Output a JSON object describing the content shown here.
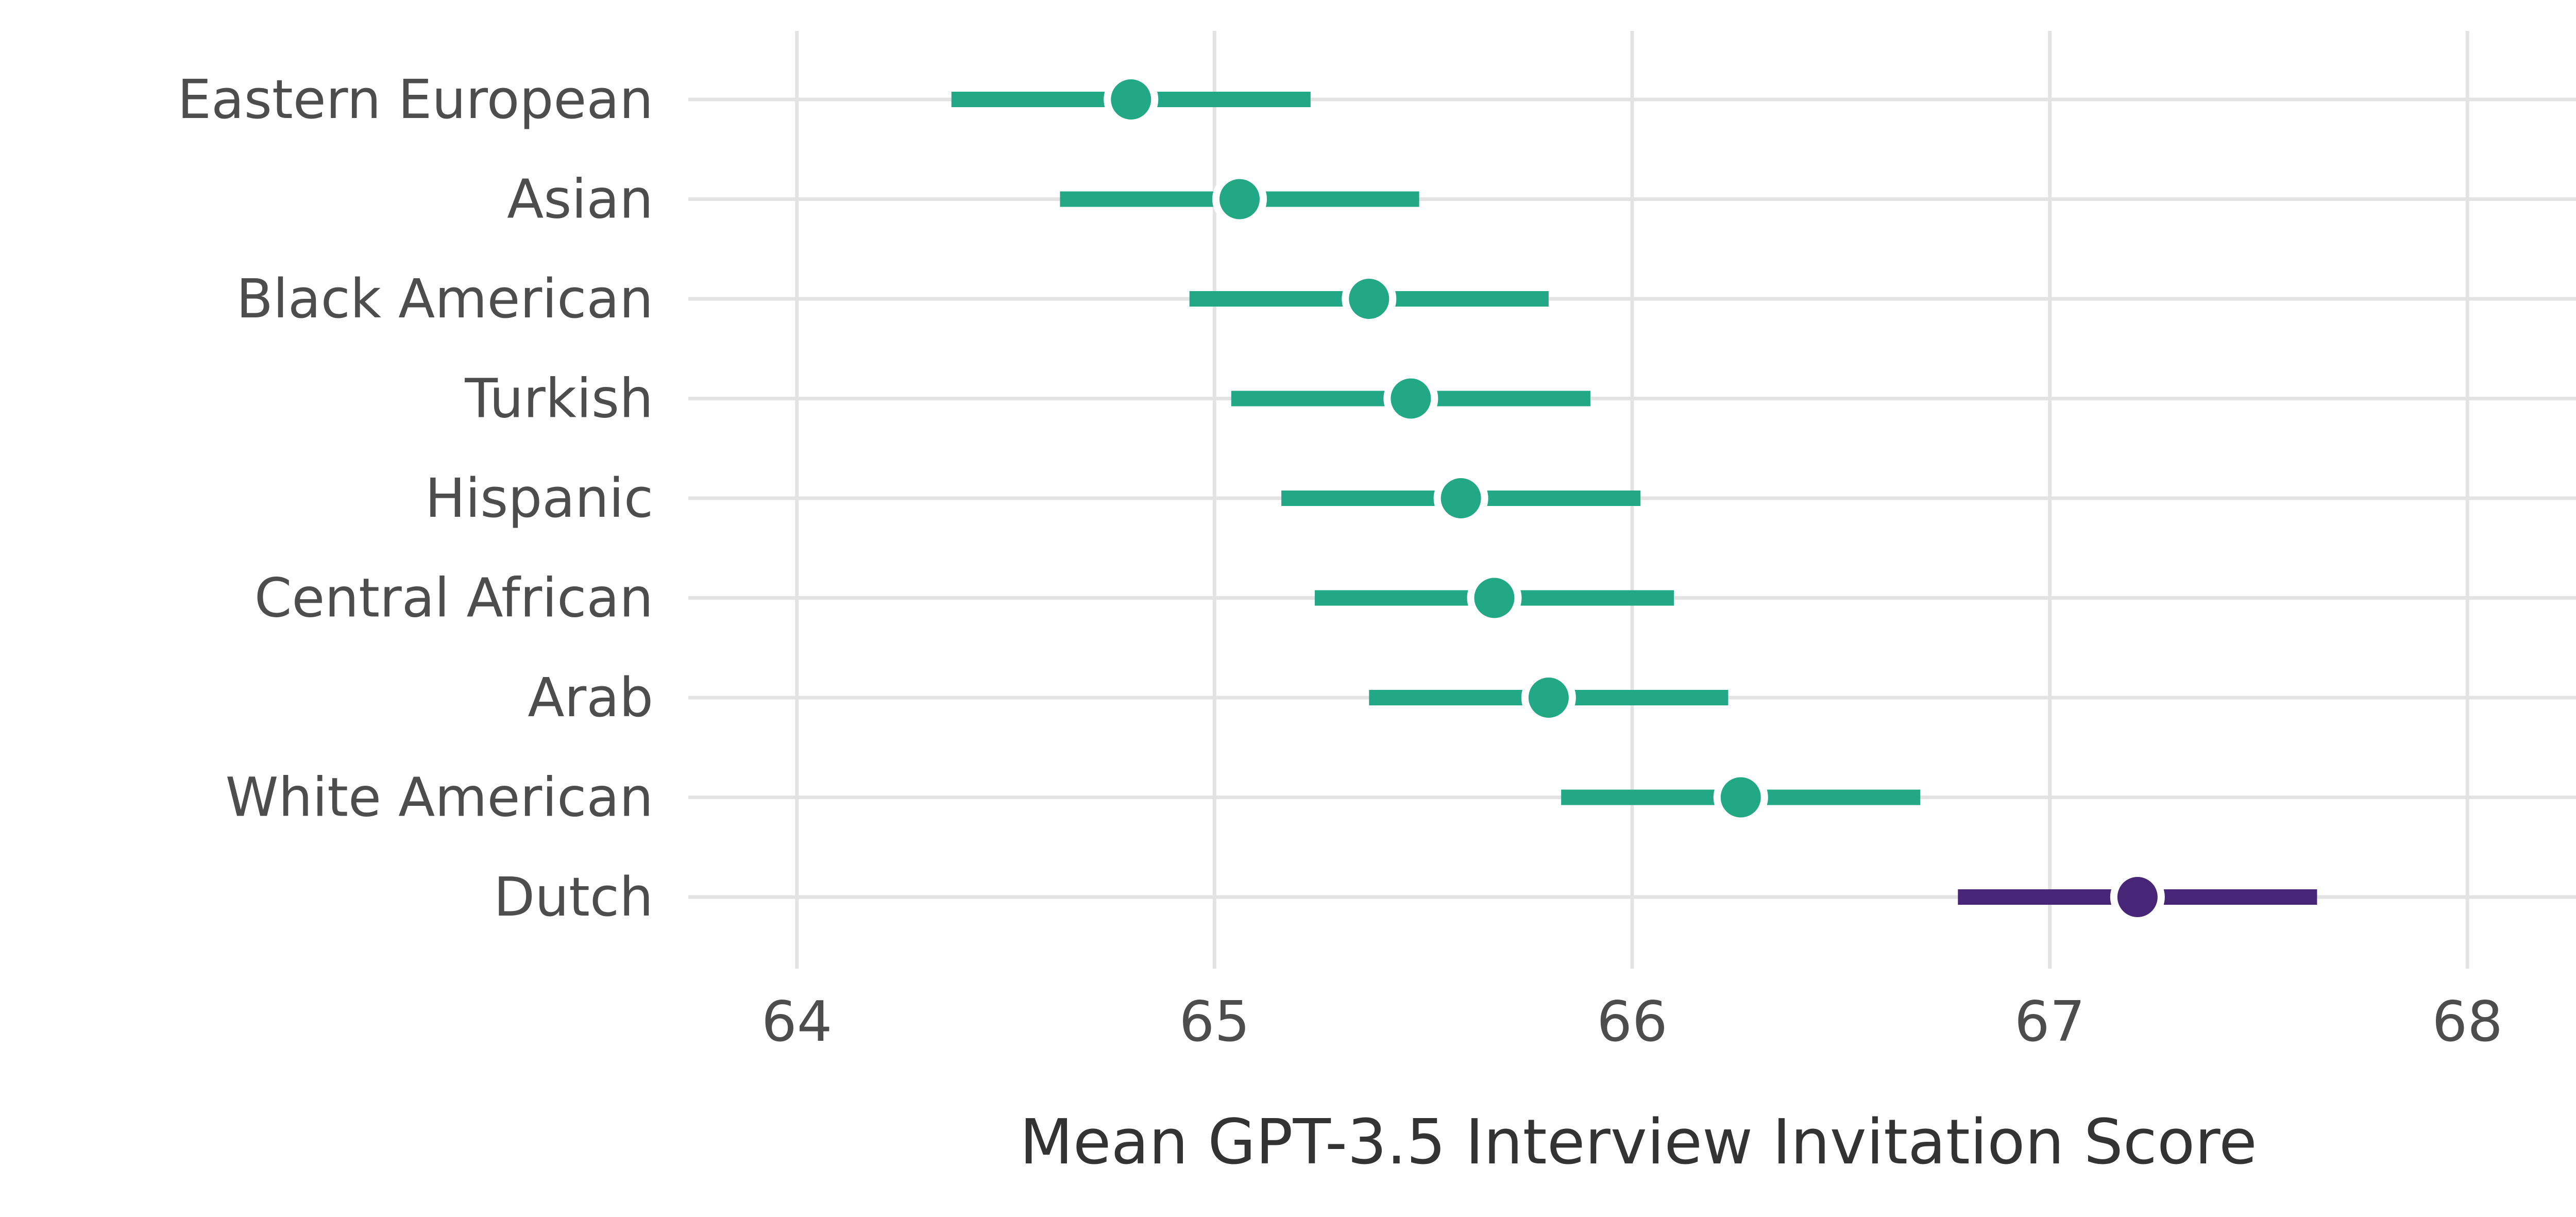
{
  "chart_data": {
    "type": "dot-errorbar",
    "orientation": "horizontal",
    "title": "",
    "xlabel": "Mean GPT-3.5 Interview Invitation Score",
    "ylabel": "",
    "xlim": [
      63.74,
      68.26
    ],
    "x_ticks": [
      64,
      65,
      66,
      67,
      68
    ],
    "grid": true,
    "legend": "none",
    "categories": [
      "Eastern European",
      "Asian",
      "Black American",
      "Turkish",
      "Hispanic",
      "Central African",
      "Arab",
      "White American",
      "Dutch"
    ],
    "series": [
      {
        "points": [
          {
            "label": "Eastern European",
            "mean": 64.8,
            "low": 64.37,
            "high": 65.23,
            "color": "#22a884"
          },
          {
            "label": "Asian",
            "mean": 65.06,
            "low": 64.63,
            "high": 65.49,
            "color": "#22a884"
          },
          {
            "label": "Black American",
            "mean": 65.37,
            "low": 64.94,
            "high": 65.8,
            "color": "#22a884"
          },
          {
            "label": "Turkish",
            "mean": 65.47,
            "low": 65.04,
            "high": 65.9,
            "color": "#22a884"
          },
          {
            "label": "Hispanic",
            "mean": 65.59,
            "low": 65.16,
            "high": 66.02,
            "color": "#22a884"
          },
          {
            "label": "Central African",
            "mean": 65.67,
            "low": 65.24,
            "high": 66.1,
            "color": "#22a884"
          },
          {
            "label": "Arab",
            "mean": 65.8,
            "low": 65.37,
            "high": 66.23,
            "color": "#22a884"
          },
          {
            "label": "White American",
            "mean": 66.26,
            "low": 65.83,
            "high": 66.69,
            "color": "#22a884"
          },
          {
            "label": "Dutch",
            "mean": 67.21,
            "low": 66.78,
            "high": 67.64,
            "color": "#482677"
          }
        ]
      }
    ]
  }
}
